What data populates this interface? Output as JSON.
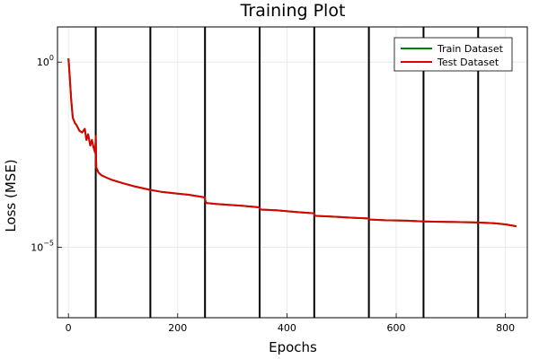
{
  "chart_data": {
    "type": "line",
    "title": "Training Plot",
    "xlabel": "Epochs",
    "ylabel": "Loss (MSE)",
    "y_scale": "log10",
    "xlim": [
      -20,
      840
    ],
    "ylim_log10": [
      -6.9,
      0.95
    ],
    "x_ticks": [
      0,
      200,
      400,
      600,
      800
    ],
    "x_tick_labels": [
      "0",
      "200",
      "400",
      "600",
      "800"
    ],
    "y_ticks_log10": [
      0,
      -5
    ],
    "y_tick_labels": [
      {
        "base": "10",
        "exp": "0"
      },
      {
        "base": "10",
        "exp": "−5"
      }
    ],
    "grid": true,
    "legend_position": "top-right",
    "vlines": [
      50,
      150,
      250,
      350,
      450,
      550,
      650,
      750
    ],
    "series": [
      {
        "name": "Train Dataset",
        "color": "#008000",
        "x": [
          0,
          2,
          5,
          8,
          12,
          15,
          20,
          25,
          30,
          33,
          36,
          40,
          43,
          46,
          49,
          50,
          51,
          55,
          60,
          70,
          80,
          100,
          120,
          150,
          170,
          200,
          220,
          249,
          252,
          270,
          300,
          320,
          349,
          352,
          380,
          420,
          449,
          452,
          480,
          520,
          549,
          552,
          580,
          620,
          650,
          680,
          720,
          750,
          780,
          800,
          820
        ],
        "y_log10": [
          0.1,
          -0.3,
          -1.0,
          -1.5,
          -1.65,
          -1.7,
          -1.85,
          -1.9,
          -1.8,
          -2.1,
          -1.95,
          -2.25,
          -2.1,
          -2.3,
          -2.45,
          -2.0,
          -2.85,
          -2.98,
          -3.05,
          -3.12,
          -3.18,
          -3.27,
          -3.35,
          -3.45,
          -3.5,
          -3.55,
          -3.58,
          -3.65,
          -3.8,
          -3.83,
          -3.86,
          -3.88,
          -3.92,
          -3.98,
          -4.0,
          -4.05,
          -4.08,
          -4.15,
          -4.17,
          -4.2,
          -4.22,
          -4.25,
          -4.27,
          -4.28,
          -4.3,
          -4.31,
          -4.32,
          -4.33,
          -4.35,
          -4.38,
          -4.43
        ]
      },
      {
        "name": "Test Dataset",
        "color": "#dd0000",
        "x": [
          0,
          2,
          5,
          8,
          12,
          15,
          20,
          25,
          30,
          33,
          36,
          40,
          43,
          46,
          49,
          50,
          51,
          55,
          60,
          70,
          80,
          100,
          120,
          150,
          170,
          200,
          220,
          249,
          252,
          270,
          300,
          320,
          349,
          352,
          380,
          420,
          449,
          452,
          480,
          520,
          549,
          552,
          580,
          620,
          650,
          680,
          720,
          750,
          780,
          800,
          820
        ],
        "y_log10": [
          0.1,
          -0.3,
          -1.0,
          -1.5,
          -1.65,
          -1.7,
          -1.85,
          -1.9,
          -1.8,
          -2.1,
          -1.95,
          -2.25,
          -2.1,
          -2.3,
          -2.45,
          -2.0,
          -2.85,
          -2.98,
          -3.05,
          -3.12,
          -3.18,
          -3.27,
          -3.35,
          -3.45,
          -3.5,
          -3.55,
          -3.58,
          -3.65,
          -3.8,
          -3.83,
          -3.86,
          -3.88,
          -3.92,
          -3.98,
          -4.0,
          -4.05,
          -4.08,
          -4.15,
          -4.17,
          -4.2,
          -4.22,
          -4.25,
          -4.27,
          -4.28,
          -4.3,
          -4.31,
          -4.32,
          -4.33,
          -4.35,
          -4.38,
          -4.43
        ]
      }
    ]
  }
}
